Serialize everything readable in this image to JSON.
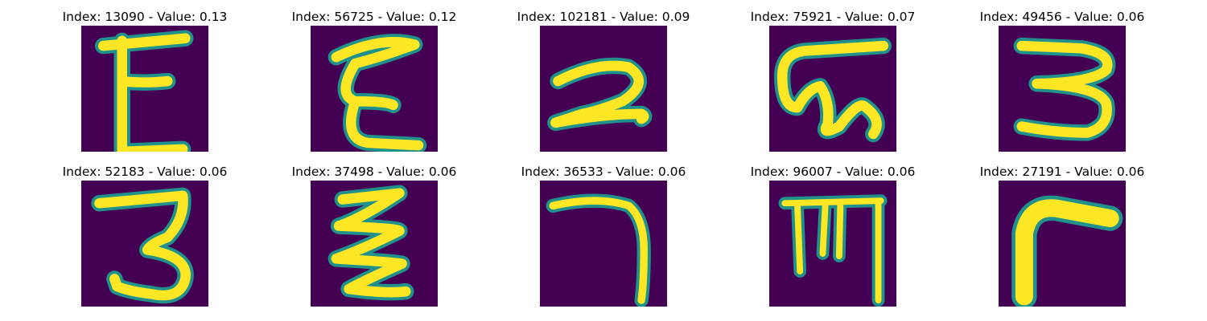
{
  "colors": {
    "background": "#440154",
    "stroke": "#fde725",
    "edge": "#21918c"
  },
  "grid": {
    "tiles": [
      {
        "title": "Index: 13090 - Value: 0.13",
        "glyph": "E"
      },
      {
        "title": "Index: 56725 - Value: 0.12",
        "glyph": "E"
      },
      {
        "title": "Index: 102181 - Value: 0.09",
        "glyph": "2"
      },
      {
        "title": "Index: 75921 - Value: 0.07",
        "glyph": "ω"
      },
      {
        "title": "Index: 49456 - Value: 0.06",
        "glyph": "3"
      },
      {
        "title": "Index: 52183 - Value: 0.06",
        "glyph": "3"
      },
      {
        "title": "Index: 37498 - Value: 0.06",
        "glyph": "Z"
      },
      {
        "title": "Index: 36533 - Value: 0.06",
        "glyph": "7"
      },
      {
        "title": "Index: 96007 - Value: 0.06",
        "glyph": "m"
      },
      {
        "title": "Index: 27191 - Value: 0.06",
        "glyph": "r"
      }
    ]
  }
}
